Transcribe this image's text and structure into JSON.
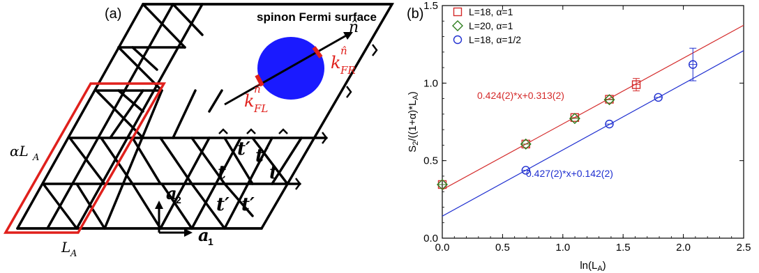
{
  "panel_a": {
    "panel_label": "(a)",
    "fermi_surface_label": "spinon Fermi surface",
    "n_hat": "n̂",
    "k_FR": {
      "base": "k",
      "sup": "n̂",
      "sub": "FR"
    },
    "k_FL": {
      "base": "k",
      "sup": "n̂",
      "sub": "FL"
    },
    "alpha_LA": "αL",
    "alpha_LA_sub": "A",
    "LA": "L",
    "LA_sub": "A",
    "a1": "a",
    "a1_sub": "1",
    "a2": "a",
    "a2_sub": "2",
    "t_prime": "t′",
    "t": "t",
    "colors": {
      "lattice": "#000000",
      "subsystem": "#e0201c",
      "fermi_disk": "#1a1aff",
      "k_marks": "#e0201c"
    }
  },
  "chart_data": {
    "type": "scatter",
    "panel_label": "(b)",
    "xlabel": "ln(L_A)",
    "ylabel": "S_2/((1+α)*L_A)",
    "xlim": [
      0.0,
      2.5
    ],
    "ylim": [
      0.0,
      1.5
    ],
    "xticks": [
      "0.0",
      "0.5",
      "1.0",
      "1.5",
      "2.0",
      "2.5"
    ],
    "yticks": [
      "0.0",
      "0.5",
      "1.0",
      "1.5"
    ],
    "legend_position": "top-left",
    "series": [
      {
        "name": "L=18, α=1",
        "marker": "square",
        "color": "#d42a2a",
        "points": [
          {
            "x": 0.0,
            "y": 0.346
          },
          {
            "x": 0.693,
            "y": 0.607
          },
          {
            "x": 1.099,
            "y": 0.778
          },
          {
            "x": 1.386,
            "y": 0.896
          },
          {
            "x": 1.609,
            "y": 0.99,
            "err": 0.04
          }
        ]
      },
      {
        "name": "L=20, α=1",
        "marker": "diamond",
        "color": "#2e7d1e",
        "points": [
          {
            "x": 0.0,
            "y": 0.346
          },
          {
            "x": 0.693,
            "y": 0.607
          },
          {
            "x": 1.099,
            "y": 0.772
          },
          {
            "x": 1.386,
            "y": 0.893
          }
        ]
      },
      {
        "name": "L=18, α=1/2",
        "marker": "circle",
        "color": "#1f2fd0",
        "points": [
          {
            "x": 0.693,
            "y": 0.438
          },
          {
            "x": 1.386,
            "y": 0.736
          },
          {
            "x": 1.792,
            "y": 0.908
          },
          {
            "x": 2.079,
            "y": 1.12,
            "err": 0.105
          }
        ]
      }
    ],
    "fits": [
      {
        "label": "0.424(2)*x+0.313(2)",
        "slope": 0.424,
        "intercept": 0.313,
        "color": "#d42a2a"
      },
      {
        "label": "0.427(2)*x+0.142(2)",
        "slope": 0.427,
        "intercept": 0.142,
        "color": "#1f2fd0"
      }
    ]
  }
}
